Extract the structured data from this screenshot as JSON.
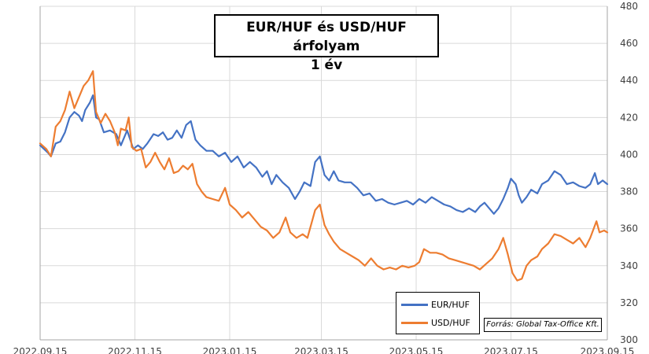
{
  "chart_data": {
    "type": "line",
    "title": [
      "EUR/HUF és USD/HUF árfolyam",
      "1 év"
    ],
    "source": "Forrás: Global Tax-Office Kft.",
    "ylim": [
      300,
      480
    ],
    "yticks": [
      300,
      320,
      340,
      360,
      380,
      400,
      420,
      440,
      460,
      480
    ],
    "xlim": [
      "2022-09-15",
      "2023-09-15"
    ],
    "xticks": [
      "2022.09.15",
      "2022.11.15",
      "2023.01.15",
      "2023.03.15",
      "2023.05.15",
      "2023.07.15",
      "2023.09.15"
    ],
    "grid": true,
    "legend_position": "bottom-right",
    "colors": {
      "EUR/HUF": "#4472c4",
      "USD/HUF": "#ed7d31"
    },
    "series": [
      {
        "name": "EUR/HUF",
        "points": [
          [
            "2022-09-15",
            405
          ],
          [
            "2022-09-20",
            401
          ],
          [
            "2022-09-22",
            399
          ],
          [
            "2022-09-25",
            406
          ],
          [
            "2022-09-28",
            407
          ],
          [
            "2022-10-01",
            412
          ],
          [
            "2022-10-04",
            420
          ],
          [
            "2022-10-07",
            423
          ],
          [
            "2022-10-10",
            421
          ],
          [
            "2022-10-12",
            418
          ],
          [
            "2022-10-14",
            424
          ],
          [
            "2022-10-17",
            428
          ],
          [
            "2022-10-19",
            432
          ],
          [
            "2022-10-21",
            420
          ],
          [
            "2022-10-23",
            419
          ],
          [
            "2022-10-26",
            412
          ],
          [
            "2022-10-30",
            413
          ],
          [
            "2022-11-03",
            411
          ],
          [
            "2022-11-06",
            405
          ],
          [
            "2022-11-10",
            413
          ],
          [
            "2022-11-14",
            403
          ],
          [
            "2022-11-17",
            405
          ],
          [
            "2022-11-20",
            403
          ],
          [
            "2022-11-23",
            406
          ],
          [
            "2022-11-27",
            411
          ],
          [
            "2022-11-30",
            410
          ],
          [
            "2022-12-03",
            412
          ],
          [
            "2022-12-06",
            408
          ],
          [
            "2022-12-09",
            409
          ],
          [
            "2022-12-12",
            413
          ],
          [
            "2022-12-15",
            409
          ],
          [
            "2022-12-18",
            416
          ],
          [
            "2022-12-21",
            418
          ],
          [
            "2022-12-24",
            408
          ],
          [
            "2022-12-27",
            405
          ],
          [
            "2022-12-31",
            402
          ],
          [
            "2023-01-04",
            402
          ],
          [
            "2023-01-08",
            399
          ],
          [
            "2023-01-12",
            401
          ],
          [
            "2023-01-16",
            396
          ],
          [
            "2023-01-20",
            399
          ],
          [
            "2023-01-24",
            393
          ],
          [
            "2023-01-28",
            396
          ],
          [
            "2023-02-01",
            393
          ],
          [
            "2023-02-05",
            388
          ],
          [
            "2023-02-08",
            391
          ],
          [
            "2023-02-11",
            384
          ],
          [
            "2023-02-14",
            389
          ],
          [
            "2023-02-18",
            385
          ],
          [
            "2023-02-22",
            382
          ],
          [
            "2023-02-26",
            376
          ],
          [
            "2023-03-01",
            380
          ],
          [
            "2023-03-04",
            385
          ],
          [
            "2023-03-08",
            383
          ],
          [
            "2023-03-11",
            396
          ],
          [
            "2023-03-14",
            399
          ],
          [
            "2023-03-17",
            389
          ],
          [
            "2023-03-20",
            386
          ],
          [
            "2023-03-23",
            391
          ],
          [
            "2023-03-26",
            386
          ],
          [
            "2023-03-30",
            385
          ],
          [
            "2023-04-03",
            385
          ],
          [
            "2023-04-07",
            382
          ],
          [
            "2023-04-11",
            378
          ],
          [
            "2023-04-15",
            379
          ],
          [
            "2023-04-19",
            375
          ],
          [
            "2023-04-23",
            376
          ],
          [
            "2023-04-27",
            374
          ],
          [
            "2023-05-01",
            373
          ],
          [
            "2023-05-05",
            374
          ],
          [
            "2023-05-09",
            375
          ],
          [
            "2023-05-13",
            373
          ],
          [
            "2023-05-17",
            376
          ],
          [
            "2023-05-21",
            374
          ],
          [
            "2023-05-25",
            377
          ],
          [
            "2023-05-29",
            375
          ],
          [
            "2023-06-02",
            373
          ],
          [
            "2023-06-06",
            372
          ],
          [
            "2023-06-10",
            370
          ],
          [
            "2023-06-14",
            369
          ],
          [
            "2023-06-18",
            371
          ],
          [
            "2023-06-22",
            369
          ],
          [
            "2023-06-25",
            372
          ],
          [
            "2023-06-28",
            374
          ],
          [
            "2023-07-01",
            371
          ],
          [
            "2023-07-04",
            368
          ],
          [
            "2023-07-07",
            371
          ],
          [
            "2023-07-10",
            376
          ],
          [
            "2023-07-13",
            382
          ],
          [
            "2023-07-15",
            387
          ],
          [
            "2023-07-18",
            384
          ],
          [
            "2023-07-20",
            378
          ],
          [
            "2023-07-22",
            374
          ],
          [
            "2023-07-25",
            377
          ],
          [
            "2023-07-28",
            381
          ],
          [
            "2023-08-01",
            379
          ],
          [
            "2023-08-04",
            384
          ],
          [
            "2023-08-08",
            386
          ],
          [
            "2023-08-12",
            391
          ],
          [
            "2023-08-16",
            389
          ],
          [
            "2023-08-20",
            384
          ],
          [
            "2023-08-24",
            385
          ],
          [
            "2023-08-28",
            383
          ],
          [
            "2023-09-01",
            382
          ],
          [
            "2023-09-04",
            384
          ],
          [
            "2023-09-07",
            390
          ],
          [
            "2023-09-09",
            384
          ],
          [
            "2023-09-12",
            386
          ],
          [
            "2023-09-15",
            384
          ]
        ]
      },
      {
        "name": "USD/HUF",
        "points": [
          [
            "2022-09-15",
            406
          ],
          [
            "2022-09-19",
            403
          ],
          [
            "2022-09-22",
            399
          ],
          [
            "2022-09-25",
            415
          ],
          [
            "2022-09-28",
            418
          ],
          [
            "2022-10-01",
            424
          ],
          [
            "2022-10-04",
            434
          ],
          [
            "2022-10-07",
            425
          ],
          [
            "2022-10-10",
            431
          ],
          [
            "2022-10-13",
            437
          ],
          [
            "2022-10-16",
            440
          ],
          [
            "2022-10-19",
            445
          ],
          [
            "2022-10-21",
            423
          ],
          [
            "2022-10-24",
            417
          ],
          [
            "2022-10-27",
            422
          ],
          [
            "2022-10-30",
            418
          ],
          [
            "2022-11-02",
            412
          ],
          [
            "2022-11-04",
            405
          ],
          [
            "2022-11-06",
            414
          ],
          [
            "2022-11-09",
            413
          ],
          [
            "2022-11-11",
            420
          ],
          [
            "2022-11-13",
            404
          ],
          [
            "2022-11-16",
            402
          ],
          [
            "2022-11-19",
            403
          ],
          [
            "2022-11-22",
            393
          ],
          [
            "2022-11-25",
            396
          ],
          [
            "2022-11-28",
            401
          ],
          [
            "2022-12-01",
            396
          ],
          [
            "2022-12-04",
            392
          ],
          [
            "2022-12-07",
            398
          ],
          [
            "2022-12-10",
            390
          ],
          [
            "2022-12-13",
            391
          ],
          [
            "2022-12-16",
            394
          ],
          [
            "2022-12-19",
            392
          ],
          [
            "2022-12-22",
            395
          ],
          [
            "2022-12-25",
            384
          ],
          [
            "2022-12-28",
            380
          ],
          [
            "2022-12-31",
            377
          ],
          [
            "2023-01-04",
            376
          ],
          [
            "2023-01-08",
            375
          ],
          [
            "2023-01-12",
            382
          ],
          [
            "2023-01-15",
            373
          ],
          [
            "2023-01-19",
            370
          ],
          [
            "2023-01-23",
            366
          ],
          [
            "2023-01-27",
            369
          ],
          [
            "2023-01-31",
            365
          ],
          [
            "2023-02-04",
            361
          ],
          [
            "2023-02-08",
            359
          ],
          [
            "2023-02-12",
            355
          ],
          [
            "2023-02-16",
            358
          ],
          [
            "2023-02-20",
            366
          ],
          [
            "2023-02-23",
            358
          ],
          [
            "2023-02-27",
            355
          ],
          [
            "2023-03-03",
            357
          ],
          [
            "2023-03-06",
            355
          ],
          [
            "2023-03-09",
            364
          ],
          [
            "2023-03-11",
            370
          ],
          [
            "2023-03-14",
            373
          ],
          [
            "2023-03-17",
            362
          ],
          [
            "2023-03-20",
            357
          ],
          [
            "2023-03-23",
            353
          ],
          [
            "2023-03-27",
            349
          ],
          [
            "2023-03-31",
            347
          ],
          [
            "2023-04-04",
            345
          ],
          [
            "2023-04-08",
            343
          ],
          [
            "2023-04-12",
            340
          ],
          [
            "2023-04-16",
            344
          ],
          [
            "2023-04-20",
            340
          ],
          [
            "2023-04-24",
            338
          ],
          [
            "2023-04-28",
            339
          ],
          [
            "2023-05-02",
            338
          ],
          [
            "2023-05-06",
            340
          ],
          [
            "2023-05-10",
            339
          ],
          [
            "2023-05-14",
            340
          ],
          [
            "2023-05-17",
            342
          ],
          [
            "2023-05-20",
            349
          ],
          [
            "2023-05-24",
            347
          ],
          [
            "2023-05-28",
            347
          ],
          [
            "2023-06-01",
            346
          ],
          [
            "2023-06-05",
            344
          ],
          [
            "2023-06-09",
            343
          ],
          [
            "2023-06-13",
            342
          ],
          [
            "2023-06-17",
            341
          ],
          [
            "2023-06-21",
            340
          ],
          [
            "2023-06-25",
            338
          ],
          [
            "2023-06-29",
            341
          ],
          [
            "2023-07-03",
            344
          ],
          [
            "2023-07-07",
            349
          ],
          [
            "2023-07-10",
            355
          ],
          [
            "2023-07-13",
            346
          ],
          [
            "2023-07-16",
            336
          ],
          [
            "2023-07-19",
            332
          ],
          [
            "2023-07-22",
            333
          ],
          [
            "2023-07-25",
            340
          ],
          [
            "2023-07-28",
            343
          ],
          [
            "2023-08-01",
            345
          ],
          [
            "2023-08-04",
            349
          ],
          [
            "2023-08-08",
            352
          ],
          [
            "2023-08-12",
            357
          ],
          [
            "2023-08-16",
            356
          ],
          [
            "2023-08-20",
            354
          ],
          [
            "2023-08-24",
            352
          ],
          [
            "2023-08-28",
            355
          ],
          [
            "2023-09-01",
            350
          ],
          [
            "2023-09-04",
            355
          ],
          [
            "2023-09-08",
            364
          ],
          [
            "2023-09-10",
            358
          ],
          [
            "2023-09-13",
            359
          ],
          [
            "2023-09-15",
            358
          ]
        ]
      }
    ]
  }
}
